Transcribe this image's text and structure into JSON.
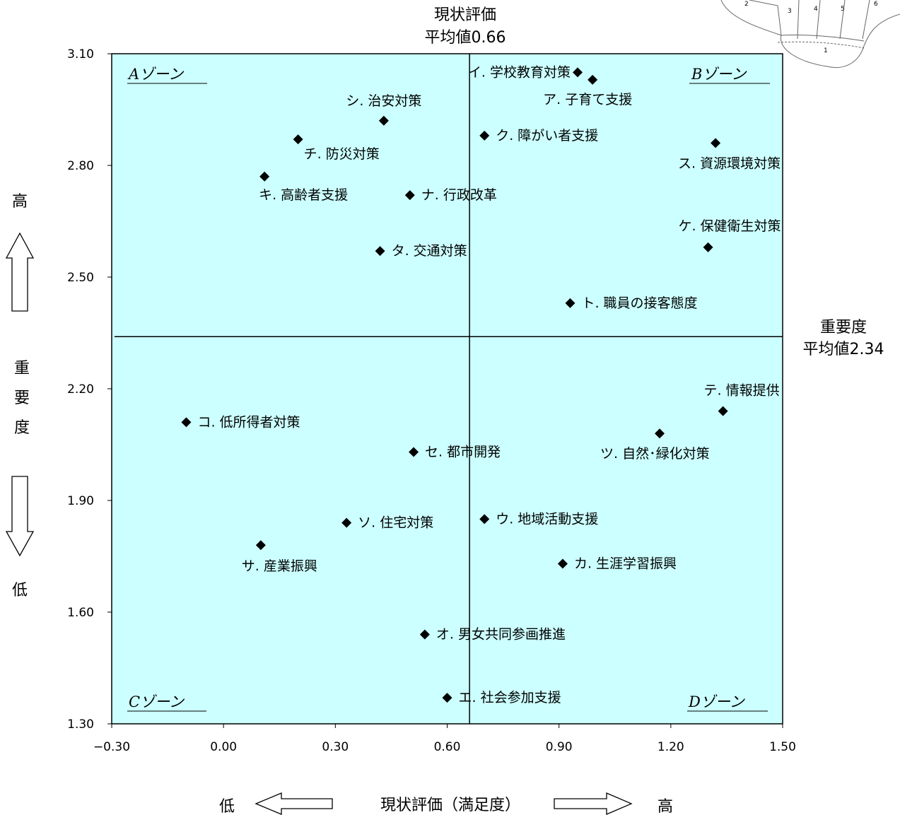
{
  "chart_data": {
    "type": "scatter",
    "xlim": [
      -0.3,
      1.5
    ],
    "ylim": [
      1.3,
      3.1
    ],
    "x_ticks": [
      "−0.30",
      "0.00",
      "0.30",
      "0.60",
      "0.90",
      "1.20",
      "1.50"
    ],
    "y_ticks": [
      "1.30",
      "1.60",
      "1.90",
      "2.20",
      "2.50",
      "2.80",
      "3.10"
    ],
    "grid": false,
    "background": "#ccffff",
    "x_mean": 0.66,
    "y_mean": 2.34,
    "x_mean_label": [
      "現状評価",
      "平均値0.66"
    ],
    "y_mean_label": [
      "重要度",
      "平均値2.34"
    ],
    "xlabel": "現状評価（満足度）",
    "x_low": "低",
    "x_high": "高",
    "y_high": "高",
    "y_low": "低",
    "ylabel_chars": [
      "重",
      "要",
      "度"
    ],
    "zones": [
      "Aゾーン",
      "Bゾーン",
      "Cゾーン",
      "Dゾーン"
    ],
    "points": [
      {
        "label": "イ. 学校教育対策",
        "x": 0.95,
        "y": 3.05
      },
      {
        "label": "ア. 子育て支援",
        "x": 0.99,
        "y": 3.03
      },
      {
        "label": "シ. 治安対策",
        "x": 0.43,
        "y": 2.92
      },
      {
        "label": "チ. 防災対策",
        "x": 0.2,
        "y": 2.87
      },
      {
        "label": "ク. 障がい者支援",
        "x": 0.7,
        "y": 2.88
      },
      {
        "label": "ス. 資源環境対策",
        "x": 1.32,
        "y": 2.86
      },
      {
        "label": "キ. 高齢者支援",
        "x": 0.11,
        "y": 2.77
      },
      {
        "label": "ナ. 行政改革",
        "x": 0.5,
        "y": 2.72
      },
      {
        "label": "ケ. 保健衛生対策",
        "x": 1.3,
        "y": 2.58
      },
      {
        "label": "タ. 交通対策",
        "x": 0.42,
        "y": 2.57
      },
      {
        "label": "ト. 職員の接客態度",
        "x": 0.93,
        "y": 2.43
      },
      {
        "label": "テ. 情報提供",
        "x": 1.34,
        "y": 2.14
      },
      {
        "label": "コ. 低所得者対策",
        "x": -0.1,
        "y": 2.11
      },
      {
        "label": "ツ. 自然･緑化対策",
        "x": 1.17,
        "y": 2.08
      },
      {
        "label": "セ. 都市開発",
        "x": 0.51,
        "y": 2.03
      },
      {
        "label": "ウ. 地域活動支援",
        "x": 0.7,
        "y": 1.85
      },
      {
        "label": "ソ. 住宅対策",
        "x": 0.33,
        "y": 1.84
      },
      {
        "label": "サ. 産業振興",
        "x": 0.1,
        "y": 1.78
      },
      {
        "label": "カ. 生涯学習振興",
        "x": 0.91,
        "y": 1.73
      },
      {
        "label": "オ. 男女共同参画推進",
        "x": 0.54,
        "y": 1.54
      },
      {
        "label": "エ. 社会参加支援",
        "x": 0.6,
        "y": 1.37
      }
    ]
  },
  "map_numbers": [
    "2",
    "3",
    "4",
    "5",
    "6",
    "1"
  ]
}
